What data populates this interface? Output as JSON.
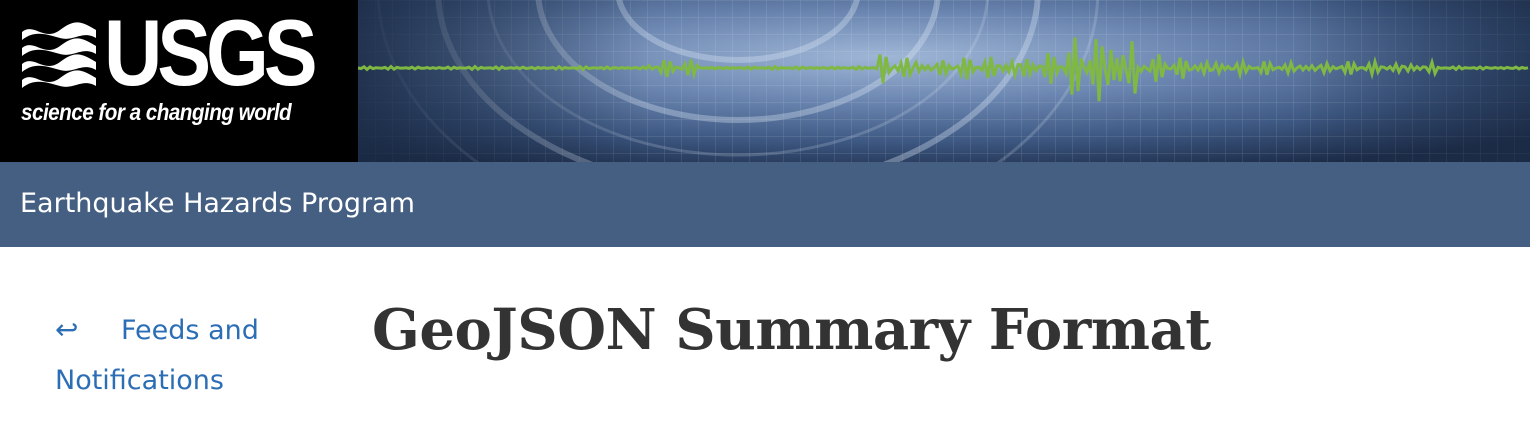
{
  "header": {
    "logo_text": "USGS",
    "tagline": "science for a changing world"
  },
  "program_bar": {
    "title": "Earthquake Hazards Program"
  },
  "sidebar": {
    "back_arrow": "↩",
    "back_link_label": "Feeds and Notifications"
  },
  "main": {
    "page_title": "GeoJSON Summary Format"
  },
  "colors": {
    "logo_background": "#000000",
    "program_bar": "#445f82",
    "link": "#2c6eb5",
    "title_text": "#333333",
    "seismogram": "#7fb843"
  }
}
